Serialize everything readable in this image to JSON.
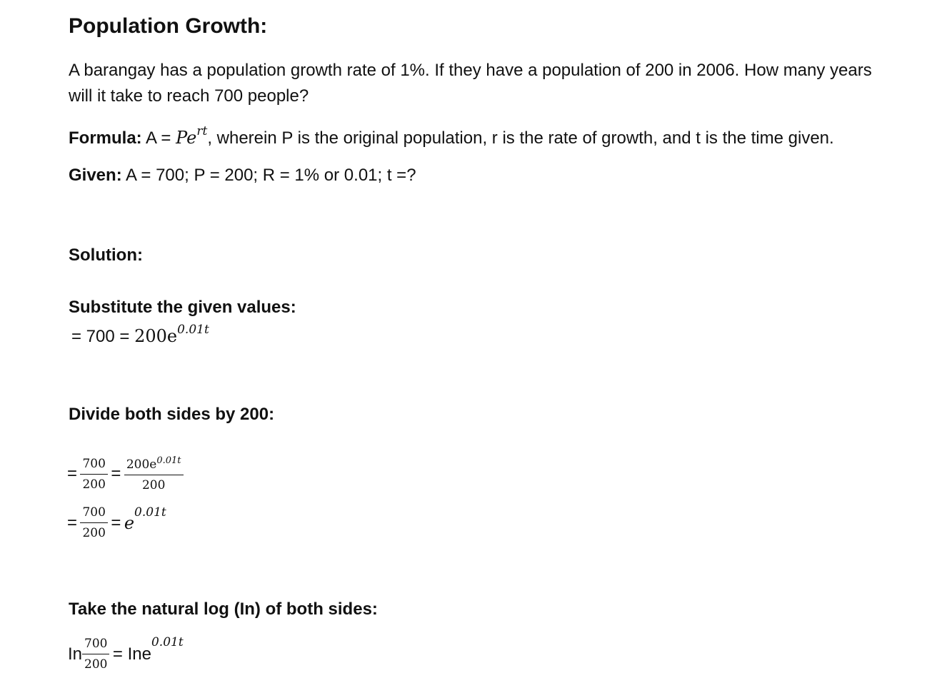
{
  "title": "Population Growth:",
  "problem": "A barangay has a population growth rate of 1%. If they have a population of 200 in 2006. How many years will it take to reach 700 people?",
  "formula": {
    "label": "Formula:",
    "lhs": "A = ",
    "base": "Pe",
    "exponent": "rt",
    "description": ", wherein P is the original population, r is the rate of growth, and t is the time given."
  },
  "given": {
    "label": "Given:",
    "text": " A = 700; P = 200; R = 1% or 0.01; t =?"
  },
  "solution_label": "Solution:",
  "step1": {
    "heading": "Substitute the given values:",
    "lhs": "= 700 = ",
    "base": "200e",
    "exponent": "0.01t"
  },
  "step2": {
    "heading": "Divide both sides by 200:",
    "line1": {
      "eq": "=",
      "num": "700",
      "den": "200",
      "eq2": "=",
      "num2_base": "200e",
      "num2_exp": "0.01t",
      "den2": "200"
    },
    "line2": {
      "eq": "=",
      "num": "700",
      "den": "200",
      "eq2": "=",
      "base": "e",
      "exp": "0.01t"
    }
  },
  "step3": {
    "heading": "Take the natural log (In) of both sides:",
    "prefix": "In",
    "num": "700",
    "den": "200",
    "eq": "= Ine",
    "exp": "0.01t"
  }
}
